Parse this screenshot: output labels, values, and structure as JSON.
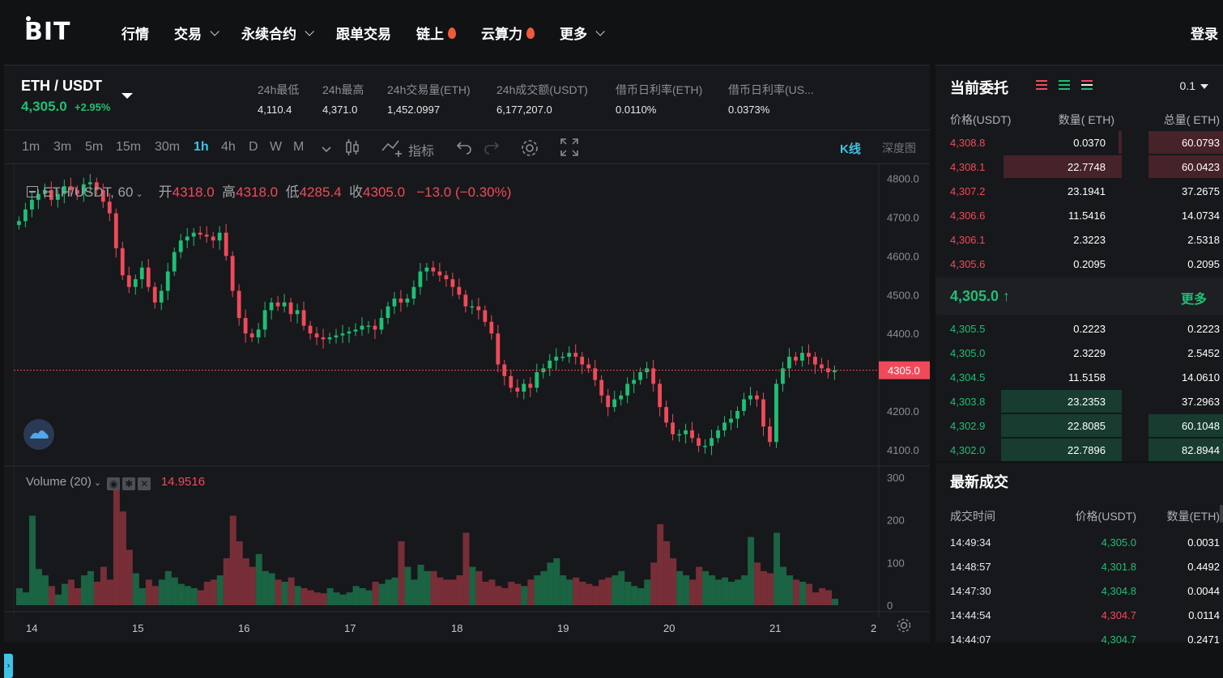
{
  "nav": {
    "logo": "BIT",
    "items": [
      {
        "label": "行情",
        "chevron": false,
        "fire": false
      },
      {
        "label": "交易",
        "chevron": true,
        "fire": false
      },
      {
        "label": "永续合约",
        "chevron": true,
        "fire": false
      },
      {
        "label": "跟单交易",
        "chevron": false,
        "fire": false
      },
      {
        "label": "链上",
        "chevron": false,
        "fire": true
      },
      {
        "label": "云算力",
        "chevron": false,
        "fire": true
      },
      {
        "label": "更多",
        "chevron": true,
        "fire": false
      }
    ],
    "login": "登录"
  },
  "ticker": {
    "pair": "ETH / USDT",
    "price": "4,305.0",
    "change": "+2.95%",
    "stats": [
      {
        "label": "24h最低",
        "value": "4,110.4"
      },
      {
        "label": "24h最高",
        "value": "4,371.0"
      },
      {
        "label": "24h交易量(ETH)",
        "value": "1,452.0997"
      },
      {
        "label": "24h成交额(USDT)",
        "value": "6,177,207.0"
      },
      {
        "label": "借币日利率(ETH)",
        "value": "0.0110%"
      },
      {
        "label": "借币日利率(US...",
        "value": "0.0373%"
      }
    ]
  },
  "toolbar": {
    "timeframes": [
      "1m",
      "3m",
      "5m",
      "15m",
      "30m",
      "1h",
      "4h",
      "D",
      "W",
      "M"
    ],
    "active_timeframe": "1h",
    "indicators": "指标",
    "kline": "K线",
    "depth": "深度图"
  },
  "chart_legend": {
    "symbol": "ETH/USDT, 60",
    "open_label": "开",
    "open": "4318.0",
    "high_label": "高",
    "high": "4318.0",
    "low_label": "低",
    "low": "4285.4",
    "close_label": "收",
    "close": "4305.0",
    "change": "−13.0 (−0.30%)",
    "last_price_tag": "4305.0",
    "volume_label": "Volume (20)",
    "volume_value": "14.9516"
  },
  "chart_data": {
    "type": "candlestick",
    "price_axis": [
      "4800.0",
      "4700.0",
      "4600.0",
      "4500.0",
      "4400.0",
      "4300.0",
      "4200.0",
      "4100.0"
    ],
    "volume_axis": [
      "300",
      "200",
      "100",
      "0"
    ],
    "x_labels": [
      "14",
      "15",
      "16",
      "17",
      "18",
      "19",
      "20",
      "21",
      "2"
    ],
    "ylim": [
      4060,
      4820
    ],
    "closes": [
      4690,
      4720,
      4745,
      4760,
      4770,
      4745,
      4760,
      4780,
      4770,
      4760,
      4785,
      4790,
      4770,
      4740,
      4710,
      4620,
      4550,
      4520,
      4540,
      4570,
      4520,
      4480,
      4510,
      4560,
      4610,
      4640,
      4650,
      4660,
      4655,
      4650,
      4640,
      4660,
      4600,
      4510,
      4440,
      4400,
      4390,
      4410,
      4460,
      4480,
      4470,
      4480,
      4450,
      4460,
      4420,
      4400,
      4390,
      4385,
      4390,
      4395,
      4400,
      4405,
      4410,
      4420,
      4420,
      4410,
      4440,
      4470,
      4490,
      4480,
      4490,
      4520,
      4560,
      4570,
      4560,
      4550,
      4540,
      4520,
      4500,
      4470,
      4470,
      4460,
      4430,
      4400,
      4320,
      4290,
      4260,
      4250,
      4270,
      4260,
      4300,
      4310,
      4330,
      4340,
      4340,
      4350,
      4340,
      4320,
      4310,
      4280,
      4240,
      4210,
      4230,
      4240,
      4270,
      4280,
      4300,
      4310,
      4270,
      4210,
      4170,
      4140,
      4140,
      4150,
      4130,
      4110,
      4110,
      4130,
      4150,
      4170,
      4180,
      4200,
      4230,
      4240,
      4230,
      4160,
      4120,
      4270,
      4310,
      4340,
      4330,
      4350,
      4340,
      4320,
      4310,
      4300,
      4305
    ],
    "volumes": [
      40,
      30,
      210,
      85,
      70,
      45,
      25,
      50,
      60,
      40,
      70,
      80,
      55,
      90,
      60,
      290,
      220,
      130,
      75,
      40,
      60,
      45,
      60,
      80,
      65,
      50,
      45,
      40,
      35,
      55,
      60,
      70,
      110,
      210,
      150,
      110,
      90,
      120,
      80,
      75,
      60,
      55,
      65,
      45,
      40,
      35,
      30,
      28,
      40,
      30,
      25,
      30,
      45,
      40,
      35,
      55,
      50,
      60,
      65,
      150,
      90,
      60,
      95,
      80,
      80,
      65,
      60,
      60,
      70,
      170,
      90,
      80,
      55,
      60,
      45,
      40,
      55,
      50,
      45,
      60,
      70,
      80,
      100,
      110,
      70,
      60,
      65,
      55,
      50,
      45,
      60,
      65,
      70,
      80,
      55,
      45,
      40,
      60,
      100,
      190,
      150,
      110,
      80,
      70,
      60,
      90,
      80,
      70,
      60,
      65,
      55,
      60,
      70,
      160,
      100,
      80,
      75,
      170,
      90,
      70,
      60,
      55,
      50,
      30,
      40,
      35,
      15
    ],
    "last_price": 4305.0
  },
  "orderbook": {
    "title": "当前委托",
    "depth": "0.1",
    "headers": [
      "价格(USDT)",
      "数量( ETH)",
      "总量( ETH)"
    ],
    "asks": [
      {
        "price": "4,308.8",
        "qty": "0.0370",
        "total": "60.0793",
        "qty_depth": 0.01,
        "total_depth": 0.26
      },
      {
        "price": "4,308.1",
        "qty": "22.7748",
        "total": "60.0423",
        "qty_depth": 0.41,
        "total_depth": 0.26
      },
      {
        "price": "4,307.2",
        "qty": "23.1941",
        "total": "37.2675",
        "qty_depth": 0.0,
        "total_depth": 0.0
      },
      {
        "price": "4,306.6",
        "qty": "11.5416",
        "total": "14.0734",
        "qty_depth": 0.0,
        "total_depth": 0.0
      },
      {
        "price": "4,306.1",
        "qty": "2.3223",
        "total": "2.5318",
        "qty_depth": 0.0,
        "total_depth": 0.0
      },
      {
        "price": "4,305.6",
        "qty": "0.2095",
        "total": "0.2095",
        "qty_depth": 0.0,
        "total_depth": 0.0
      }
    ],
    "mid_price": "4,305.0 ↑",
    "more": "更多",
    "bids": [
      {
        "price": "4,305.5",
        "qty": "0.2223",
        "total": "0.2223",
        "qty_depth": 0.0,
        "total_depth": 0.0
      },
      {
        "price": "4,305.0",
        "qty": "2.3229",
        "total": "2.5452",
        "qty_depth": 0.0,
        "total_depth": 0.0
      },
      {
        "price": "4,304.5",
        "qty": "11.5158",
        "total": "14.0610",
        "qty_depth": 0.0,
        "total_depth": 0.0
      },
      {
        "price": "4,303.8",
        "qty": "23.2353",
        "total": "37.2963",
        "qty_depth": 0.42,
        "total_depth": 0.0
      },
      {
        "price": "4,302.9",
        "qty": "22.8085",
        "total": "60.1048",
        "qty_depth": 0.42,
        "total_depth": 0.26
      },
      {
        "price": "4,302.0",
        "qty": "22.7896",
        "total": "82.8944",
        "qty_depth": 0.42,
        "total_depth": 0.26
      }
    ]
  },
  "trades": {
    "title": "最新成交",
    "headers": [
      "成交时间",
      "价格(USDT)",
      "数量(ETH)"
    ],
    "rows": [
      {
        "time": "14:49:34",
        "price": "4,305.0",
        "qty": "0.0031",
        "side": "buy"
      },
      {
        "time": "14:48:57",
        "price": "4,301.8",
        "qty": "0.4492",
        "side": "buy"
      },
      {
        "time": "14:47:30",
        "price": "4,304.8",
        "qty": "0.0044",
        "side": "buy"
      },
      {
        "time": "14:44:54",
        "price": "4,304.7",
        "qty": "0.0114",
        "side": "sell"
      },
      {
        "time": "14:44:07",
        "price": "4,304.7",
        "qty": "0.2471",
        "side": "buy"
      }
    ]
  },
  "colors": {
    "up": "#1fbf75",
    "down": "#f04a5a",
    "accent": "#3fc4e6"
  }
}
